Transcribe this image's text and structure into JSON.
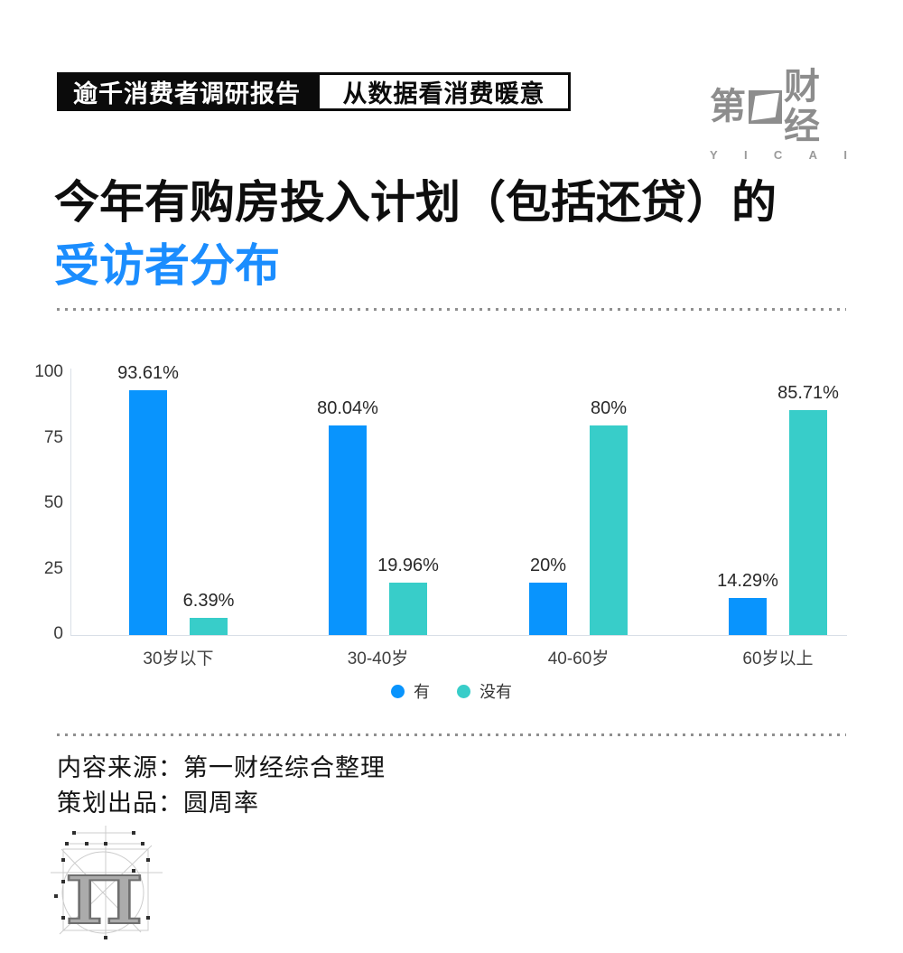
{
  "header": {
    "badge_black": "逾千消费者调研报告",
    "badge_white": "从数据看消费暖意",
    "logo": {
      "cn_left": "第",
      "cn_right": "财经",
      "latin_letters": [
        "Y",
        "I",
        "C",
        "A",
        "I"
      ]
    }
  },
  "title": {
    "line1": "今年有购房投入计划（包括还贷）的",
    "line2": "受访者分布",
    "accent_color": "#1b8dfe"
  },
  "chart_data": {
    "type": "bar",
    "title": "今年有购房投入计划（包括还贷）的受访者分布",
    "categories": [
      "30岁以下",
      "30-40岁",
      "40-60岁",
      "60岁以上"
    ],
    "series": [
      {
        "name": "有",
        "color": "#0994fd",
        "values": [
          93.61,
          80.04,
          20,
          14.29
        ],
        "labels": [
          "93.61%",
          "80.04%",
          "20%",
          "14.29%"
        ]
      },
      {
        "name": "没有",
        "color": "#38cdc9",
        "values": [
          6.39,
          19.96,
          80,
          85.71
        ],
        "labels": [
          "6.39%",
          "19.96%",
          "80%",
          "85.71%"
        ]
      }
    ],
    "xlabel": "",
    "ylabel": "",
    "ylim": [
      0,
      100
    ],
    "yticks": [
      0,
      25,
      50,
      75,
      100
    ],
    "grid": false,
    "legend_position": "bottom"
  },
  "footer": {
    "source_line": "内容来源：第一财经综合整理",
    "producer_line": "策划出品：圆周率",
    "pi_symbol": "π"
  }
}
